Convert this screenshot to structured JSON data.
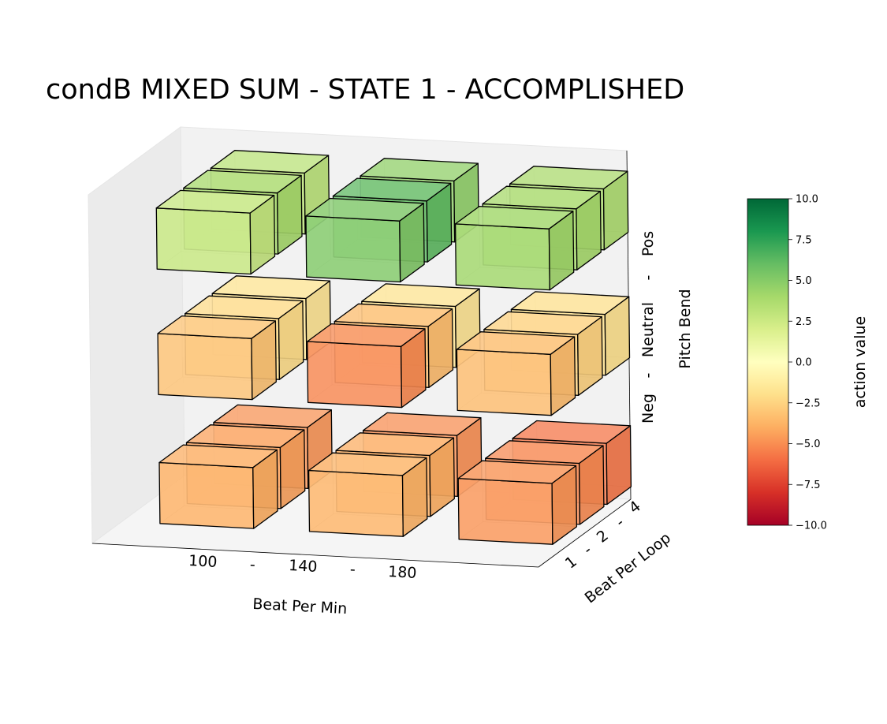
{
  "chart_data": {
    "type": "bar3d",
    "title": "condB MIXED SUM - STATE 1 - ACCOMPLISHED",
    "xlabel": "Beat Per Min",
    "ylabel": "Beat Per Loop",
    "zlabel": "Pitch Bend",
    "x_tick_labels": [
      "100",
      "-",
      "140",
      "-",
      "180"
    ],
    "y_tick_labels": [
      "1",
      "-",
      "2",
      "-",
      "4"
    ],
    "z_tick_labels": [
      "Neg",
      "-",
      "Neutral",
      "-",
      "Pos"
    ],
    "x_categories": [
      "100",
      "140",
      "180"
    ],
    "y_categories": [
      "1",
      "2",
      "4"
    ],
    "z_categories": [
      "Neg",
      "Neutral",
      "Pos"
    ],
    "colorbar": {
      "label": "action value",
      "range": [
        -10,
        10
      ],
      "ticks": [
        "10.0",
        "7.5",
        "5.0",
        "2.5",
        "0.0",
        "−2.5",
        "−5.0",
        "−7.5",
        "−10.0"
      ],
      "colormap": "RdYlGn"
    },
    "cells": [
      {
        "x": "100",
        "y": "1",
        "z": "Neg",
        "value": -4.0
      },
      {
        "x": "100",
        "y": "2",
        "z": "Neg",
        "value": -4.4
      },
      {
        "x": "100",
        "y": "4",
        "z": "Neg",
        "value": -4.8
      },
      {
        "x": "140",
        "y": "1",
        "z": "Neg",
        "value": -3.8
      },
      {
        "x": "140",
        "y": "2",
        "z": "Neg",
        "value": -4.0
      },
      {
        "x": "140",
        "y": "4",
        "z": "Neg",
        "value": -5.0
      },
      {
        "x": "180",
        "y": "1",
        "z": "Neg",
        "value": -4.8
      },
      {
        "x": "180",
        "y": "2",
        "z": "Neg",
        "value": -5.1
      },
      {
        "x": "180",
        "y": "4",
        "z": "Neg",
        "value": -5.8
      },
      {
        "x": "100",
        "y": "1",
        "z": "Neutral",
        "value": -3.2
      },
      {
        "x": "100",
        "y": "2",
        "z": "Neutral",
        "value": -2.2
      },
      {
        "x": "100",
        "y": "4",
        "z": "Neutral",
        "value": -1.8
      },
      {
        "x": "140",
        "y": "1",
        "z": "Neutral",
        "value": -5.2
      },
      {
        "x": "140",
        "y": "2",
        "z": "Neutral",
        "value": -3.5
      },
      {
        "x": "140",
        "y": "4",
        "z": "Neutral",
        "value": -1.8
      },
      {
        "x": "180",
        "y": "1",
        "z": "Neutral",
        "value": -3.5
      },
      {
        "x": "180",
        "y": "2",
        "z": "Neutral",
        "value": -2.6
      },
      {
        "x": "180",
        "y": "4",
        "z": "Neutral",
        "value": -2.0
      },
      {
        "x": "100",
        "y": "1",
        "z": "Pos",
        "value": 2.8
      },
      {
        "x": "100",
        "y": "2",
        "z": "Pos",
        "value": 4.0
      },
      {
        "x": "100",
        "y": "4",
        "z": "Pos",
        "value": 3.2
      },
      {
        "x": "140",
        "y": "1",
        "z": "Pos",
        "value": 5.2
      },
      {
        "x": "140",
        "y": "2",
        "z": "Pos",
        "value": 6.2
      },
      {
        "x": "140",
        "y": "4",
        "z": "Pos",
        "value": 4.7
      },
      {
        "x": "180",
        "y": "1",
        "z": "Pos",
        "value": 4.2
      },
      {
        "x": "180",
        "y": "2",
        "z": "Pos",
        "value": 4.0
      },
      {
        "x": "180",
        "y": "4",
        "z": "Pos",
        "value": 3.8
      }
    ]
  }
}
